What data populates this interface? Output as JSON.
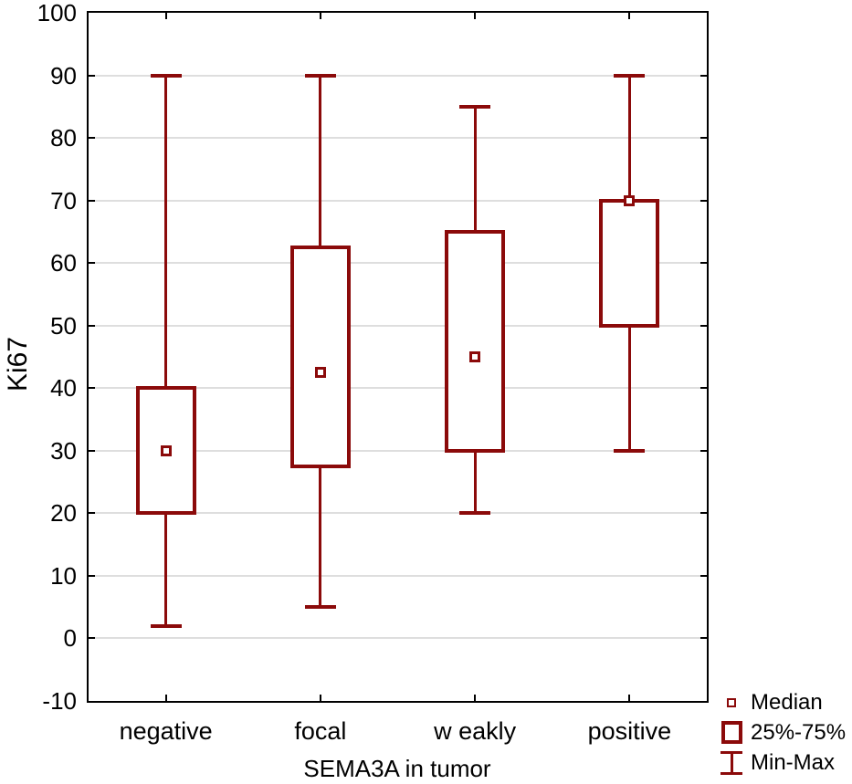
{
  "figure": {
    "background_color": "#ffffff",
    "frame_color": "#000000",
    "gridline_color": "#dedede",
    "series_color": "#8b0a0a",
    "text_color": "#000000"
  },
  "chart_data": {
    "type": "box",
    "title": "",
    "xlabel": "SEMA3A in tumor",
    "ylabel": "Ki67",
    "ylim": [
      -10,
      100
    ],
    "ytick_step": 10,
    "yticks": [
      100,
      90,
      80,
      70,
      60,
      50,
      40,
      30,
      20,
      10,
      0,
      -10
    ],
    "grid": "horizontal",
    "categories": [
      "negative",
      "focal",
      "w eakly",
      "positive"
    ],
    "groups": [
      {
        "category": "negative",
        "min": 2,
        "q1": 20,
        "median": 30,
        "q3": 40,
        "max": 90
      },
      {
        "category": "focal",
        "min": 5,
        "q1": 27.5,
        "median": 42.5,
        "q3": 62.5,
        "max": 90
      },
      {
        "category": "w eakly",
        "min": 20,
        "q1": 30,
        "median": 45,
        "q3": 65,
        "max": 85
      },
      {
        "category": "positive",
        "min": 30,
        "q1": 50,
        "median": 70,
        "q3": 70,
        "max": 90
      }
    ],
    "legend_position": "bottom-right",
    "legend": [
      {
        "symbol": "median-marker",
        "label": "Median"
      },
      {
        "symbol": "iqr-box",
        "label": "25%-75%"
      },
      {
        "symbol": "min-max-whisker",
        "label": "Min-Max"
      }
    ]
  }
}
